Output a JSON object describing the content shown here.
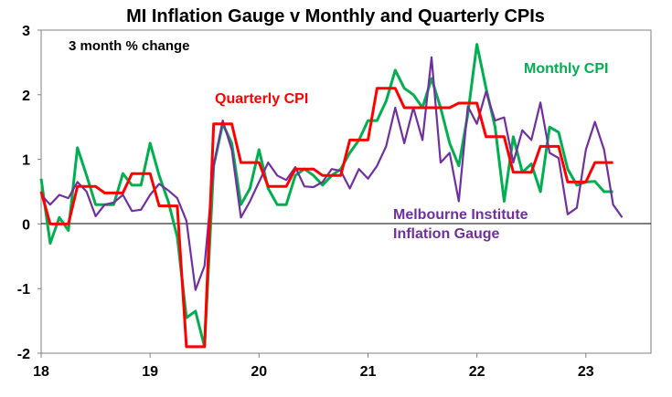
{
  "chart_data": {
    "type": "line",
    "title": "MI Inflation Gauge v Monthly and Quarterly CPIs",
    "subtitle": "3 month % change",
    "xlabel": "",
    "ylabel": "",
    "ylim": [
      -2,
      3
    ],
    "yticks": [
      "3",
      "2",
      "1",
      "0",
      "-1",
      "-2"
    ],
    "ytick_values": [
      3,
      2,
      1,
      0,
      -1,
      -2
    ],
    "xticks": [
      "18",
      "19",
      "20",
      "21",
      "22",
      "23"
    ],
    "xtick_values": [
      18,
      19,
      20,
      21,
      22,
      23
    ],
    "x_start": 18,
    "x_step_months": 1,
    "grid": false,
    "series": [
      {
        "name": "Monthly CPI",
        "label": "Monthly CPI",
        "color": "#00b050",
        "values": [
          0.7,
          -0.3,
          0.1,
          -0.1,
          1.18,
          0.75,
          0.3,
          0.3,
          0.3,
          0.78,
          0.6,
          0.6,
          1.25,
          0.75,
          0.35,
          -0.2,
          -1.45,
          -1.35,
          -1.9,
          0.9,
          1.55,
          1.25,
          0.3,
          0.55,
          1.15,
          0.55,
          0.3,
          0.3,
          0.75,
          0.85,
          0.75,
          0.6,
          0.75,
          0.85,
          1.1,
          1.3,
          1.6,
          1.6,
          1.9,
          2.38,
          2.1,
          2.0,
          1.8,
          2.25,
          1.8,
          1.25,
          0.9,
          1.7,
          2.78,
          2.1,
          1.5,
          0.35,
          1.35,
          0.8,
          0.93,
          0.5,
          1.5,
          1.42,
          0.85,
          0.6,
          0.65,
          0.66,
          0.5,
          0.5
        ]
      },
      {
        "name": "Quarterly CPI",
        "label": "Quarterly CPI",
        "color": "#ff0000",
        "values": [
          0.5,
          0,
          0,
          0,
          0.58,
          0.58,
          0.58,
          0.48,
          0.48,
          0.48,
          0.78,
          0.78,
          0.78,
          0.28,
          0.28,
          0.28,
          -1.9,
          -1.9,
          -1.9,
          1.55,
          1.55,
          1.55,
          0.95,
          0.95,
          0.95,
          0.58,
          0.58,
          0.58,
          0.85,
          0.85,
          0.85,
          0.75,
          0.75,
          0.75,
          1.3,
          1.3,
          1.3,
          2.1,
          2.1,
          2.1,
          1.8,
          1.8,
          1.8,
          1.8,
          1.8,
          1.8,
          1.87,
          1.87,
          1.87,
          1.35,
          1.35,
          1.35,
          0.8,
          0.8,
          0.8,
          1.2,
          1.2,
          1.2,
          0.65,
          0.65,
          0.65,
          0.95,
          0.95,
          0.95
        ]
      },
      {
        "name": "Melbourne Institute Inflation Gauge",
        "label": [
          "Melbourne Institute",
          "Inflation Gauge"
        ],
        "color": "#7030a0",
        "values": [
          0.45,
          0.3,
          0.45,
          0.4,
          0.65,
          0.5,
          0.12,
          0.3,
          0.33,
          0.45,
          0.2,
          0.22,
          0.45,
          0.62,
          0.52,
          0.4,
          0.05,
          -1.02,
          -0.65,
          0.9,
          1.6,
          1.15,
          0.1,
          0.35,
          0.65,
          0.95,
          0.75,
          0.68,
          0.88,
          0.58,
          0.57,
          0.65,
          0.85,
          0.82,
          0.55,
          0.85,
          0.7,
          0.9,
          1.2,
          1.8,
          1.25,
          1.8,
          1.3,
          2.58,
          0.95,
          1.1,
          0.35,
          1.82,
          1.55,
          2.05,
          1.6,
          1.65,
          0.95,
          1.45,
          1.3,
          1.88,
          1.1,
          1.02,
          0.15,
          0.25,
          1.15,
          1.58,
          1.15,
          0.3,
          0.1
        ]
      }
    ]
  }
}
